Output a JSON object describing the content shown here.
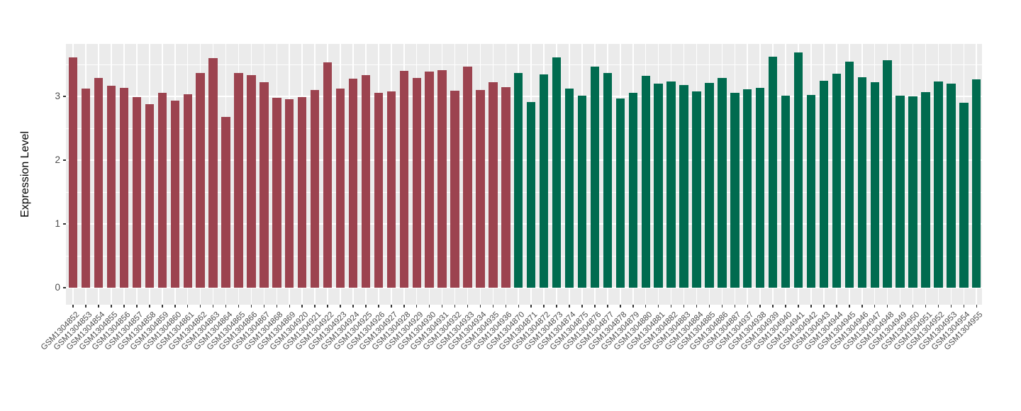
{
  "figure": {
    "background": "#FFFFFF",
    "panel_background": "#EBEBEB",
    "grid_color": "#FFFFFF",
    "axis_text_color": "#4D4D4D",
    "axis_title_color": "#000000",
    "tick_color": "#333333"
  },
  "chart_data": {
    "type": "bar",
    "title": "",
    "xlabel": "",
    "ylabel": "Expression Level",
    "ylim": [
      0,
      3.82
    ],
    "yticks": [
      0,
      1,
      2,
      3
    ],
    "yticks_minor": [
      0.5,
      1.5,
      2.5,
      3.5
    ],
    "grid": "white major+minor gridlines on gray panel (ggplot style)",
    "legend": "none",
    "group_colors": {
      "group1": "#9C434F",
      "group2": "#006B4F"
    },
    "categories": [
      "GSM1304852",
      "GSM1304853",
      "GSM1304854",
      "GSM1304855",
      "GSM1304856",
      "GSM1304857",
      "GSM1304858",
      "GSM1304859",
      "GSM1304860",
      "GSM1304861",
      "GSM1304862",
      "GSM1304863",
      "GSM1304864",
      "GSM1304865",
      "GSM1304866",
      "GSM1304867",
      "GSM1304868",
      "GSM1304869",
      "GSM1304920",
      "GSM1304921",
      "GSM1304922",
      "GSM1304923",
      "GSM1304924",
      "GSM1304925",
      "GSM1304926",
      "GSM1304927",
      "GSM1304928",
      "GSM1304929",
      "GSM1304930",
      "GSM1304931",
      "GSM1304932",
      "GSM1304933",
      "GSM1304934",
      "GSM1304935",
      "GSM1304936",
      "GSM1304870",
      "GSM1304871",
      "GSM1304872",
      "GSM1304873",
      "GSM1304874",
      "GSM1304875",
      "GSM1304876",
      "GSM1304877",
      "GSM1304878",
      "GSM1304879",
      "GSM1304880",
      "GSM1304881",
      "GSM1304882",
      "GSM1304883",
      "GSM1304884",
      "GSM1304885",
      "GSM1304886",
      "GSM1304887",
      "GSM1304937",
      "GSM1304938",
      "GSM1304939",
      "GSM1304940",
      "GSM1304941",
      "GSM1304942",
      "GSM1304943",
      "GSM1304944",
      "GSM1304945",
      "GSM1304946",
      "GSM1304947",
      "GSM1304948",
      "GSM1304949",
      "GSM1304950",
      "GSM1304951",
      "GSM1304952",
      "GSM1304953",
      "GSM1304954",
      "GSM1304955"
    ],
    "values": [
      3.61,
      3.12,
      3.29,
      3.17,
      3.13,
      2.99,
      2.88,
      3.06,
      2.93,
      3.03,
      3.37,
      3.6,
      2.68,
      3.37,
      3.33,
      3.22,
      2.98,
      2.96,
      2.99,
      3.1,
      3.53,
      3.12,
      3.28,
      3.33,
      3.06,
      3.08,
      3.4,
      3.29,
      3.39,
      3.41,
      3.09,
      3.47,
      3.1,
      3.22,
      3.15,
      3.37,
      2.91,
      3.34,
      3.61,
      3.12,
      3.01,
      3.47,
      3.37,
      2.97,
      3.06,
      3.32,
      3.2,
      3.23,
      3.18,
      3.08,
      3.21,
      3.29,
      3.06,
      3.11,
      3.13,
      3.62,
      3.01,
      3.69,
      3.02,
      3.24,
      3.36,
      3.54,
      3.3,
      3.22,
      3.57,
      3.01,
      3.0,
      3.07,
      3.23,
      3.2,
      2.9,
      3.27
    ],
    "groups": [
      "group1",
      "group1",
      "group1",
      "group1",
      "group1",
      "group1",
      "group1",
      "group1",
      "group1",
      "group1",
      "group1",
      "group1",
      "group1",
      "group1",
      "group1",
      "group1",
      "group1",
      "group1",
      "group1",
      "group1",
      "group1",
      "group1",
      "group1",
      "group1",
      "group1",
      "group1",
      "group1",
      "group1",
      "group1",
      "group1",
      "group1",
      "group1",
      "group1",
      "group1",
      "group1",
      "group2",
      "group2",
      "group2",
      "group2",
      "group2",
      "group2",
      "group2",
      "group2",
      "group2",
      "group2",
      "group2",
      "group2",
      "group2",
      "group2",
      "group2",
      "group2",
      "group2",
      "group2",
      "group2",
      "group2",
      "group2",
      "group2",
      "group2",
      "group2",
      "group2",
      "group2",
      "group2",
      "group2",
      "group2",
      "group2",
      "group2",
      "group2",
      "group2",
      "group2",
      "group2",
      "group2",
      "group2"
    ]
  }
}
